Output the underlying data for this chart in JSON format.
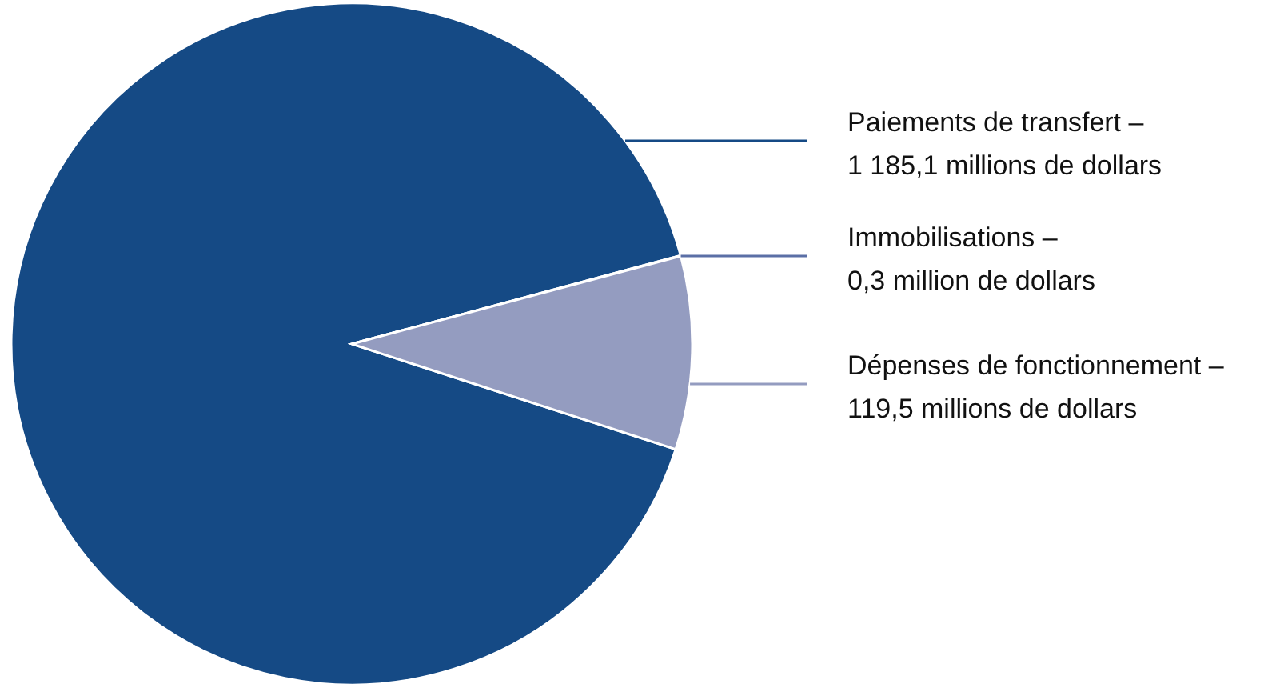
{
  "chart_data": {
    "type": "pie",
    "categories": [
      "Paiements de transfert –",
      "Immobilisations –",
      "Dépenses de fonctionnement –"
    ],
    "values": [
      1185.1,
      0.3,
      119.5
    ],
    "colors": [
      "#154a85",
      "#5b6fa6",
      "#949cc0"
    ],
    "value_labels": [
      "1 185,1 millions de dollars",
      "0,3 million de dollars",
      "119,5 millions de dollars"
    ],
    "legend": "right"
  }
}
